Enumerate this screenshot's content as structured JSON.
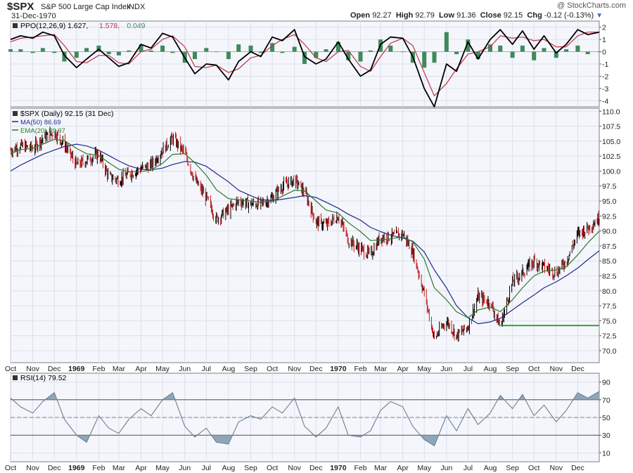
{
  "header": {
    "symbol": "$SPX",
    "name": "S&P 500 Large Cap Index",
    "exchange": "INDX",
    "date": "31-Dec-1970",
    "brand": "@ StockCharts.com",
    "open_label": "Open",
    "open": "92.27",
    "high_label": "High",
    "high": "92.79",
    "low_label": "Low",
    "low": "91.36",
    "close_label": "Close",
    "close": "92.15",
    "chg_label": "Chg",
    "chg": "-0.12 (-0.13%)"
  },
  "colors": {
    "background": "#f4f6fb",
    "grid": "#d6dbe6",
    "ma50": "#1f2a8a",
    "ema20": "#2c7a2c",
    "up_bar": "#000000",
    "down_bar": "#c41e1e",
    "ppo_line": "#000000",
    "ppo_signal": "#c0324a",
    "ppo_hist": "#3e8a5c",
    "rsi_fill": "#8fa6b8",
    "support_line": "#2e9a2e"
  },
  "chart_data": [
    {
      "type": "line",
      "panel": "PPO",
      "legend": [
        "PPO(12,26,9)",
        "1.627",
        "1.578",
        "0.049"
      ],
      "ylim": [
        -4.5,
        2.5
      ],
      "yticks": [
        2,
        1,
        0,
        -1,
        -2,
        -3,
        -4
      ],
      "x": [
        "1968-10-01",
        "1968-10-15",
        "1968-11-01",
        "1968-11-15",
        "1968-12-01",
        "1968-12-15",
        "1969-01-01",
        "1969-01-15",
        "1969-02-01",
        "1969-02-15",
        "1969-03-01",
        "1969-03-15",
        "1969-04-01",
        "1969-04-15",
        "1969-05-01",
        "1969-05-15",
        "1969-06-01",
        "1969-06-15",
        "1969-07-01",
        "1969-07-15",
        "1969-08-01",
        "1969-08-15",
        "1969-09-01",
        "1969-09-15",
        "1969-10-01",
        "1969-10-15",
        "1969-11-01",
        "1969-11-15",
        "1969-12-01",
        "1969-12-15",
        "1970-01-01",
        "1970-01-15",
        "1970-02-01",
        "1970-02-15",
        "1970-03-01",
        "1970-03-15",
        "1970-04-01",
        "1970-04-15",
        "1970-05-01",
        "1970-05-15",
        "1970-06-01",
        "1970-06-15",
        "1970-07-01",
        "1970-07-15",
        "1970-08-01",
        "1970-08-15",
        "1970-09-01",
        "1970-09-15",
        "1970-10-01",
        "1970-10-15",
        "1970-11-01",
        "1970-11-15",
        "1970-12-01",
        "1970-12-15",
        "1970-12-31"
      ],
      "series": [
        {
          "name": "PPO",
          "values": [
            1.0,
            1.3,
            1.1,
            1.6,
            1.3,
            -0.3,
            -1.3,
            -0.6,
            0.2,
            -0.5,
            -1.2,
            -0.9,
            0.6,
            0.3,
            1.5,
            1.2,
            -0.5,
            -1.8,
            -1.0,
            -1.1,
            -2.3,
            -0.8,
            0.0,
            -0.4,
            1.2,
            0.9,
            1.8,
            -0.4,
            -1.0,
            -0.6,
            0.8,
            -0.6,
            -2.0,
            -1.5,
            0.6,
            1.2,
            1.1,
            -0.4,
            -3.0,
            -4.5,
            -1.0,
            -1.6,
            0.8,
            -0.6,
            1.0,
            1.8,
            0.6,
            1.7,
            0.2,
            1.3,
            -0.1,
            0.6,
            1.8,
            1.4,
            1.6
          ]
        },
        {
          "name": "Signal",
          "values": [
            0.8,
            1.1,
            1.2,
            1.3,
            1.4,
            0.5,
            -0.8,
            -0.9,
            -0.3,
            -0.3,
            -0.9,
            -1.0,
            0.0,
            0.2,
            1.0,
            1.3,
            0.4,
            -1.2,
            -1.3,
            -1.1,
            -1.7,
            -1.4,
            -0.5,
            -0.3,
            0.5,
            1.0,
            1.4,
            0.6,
            -0.5,
            -0.8,
            0.0,
            0.1,
            -1.2,
            -1.6,
            -0.4,
            0.7,
            1.1,
            0.5,
            -1.7,
            -3.6,
            -2.6,
            -1.4,
            -0.2,
            0.0,
            0.4,
            1.3,
            1.1,
            1.2,
            0.9,
            1.0,
            0.4,
            0.4,
            1.3,
            1.6,
            1.6
          ]
        }
      ]
    },
    {
      "type": "line",
      "panel": "Price",
      "legend": [
        "$SPX (Daily) 92.15 (31 Dec)",
        "MA(50) 86.69",
        "EMA(20) 89.97"
      ],
      "ylim": [
        68,
        110.5
      ],
      "yticks": [
        110.0,
        107.5,
        105.0,
        102.5,
        100.0,
        97.5,
        95.0,
        92.5,
        90.0,
        87.5,
        85.0,
        82.5,
        80.0,
        77.5,
        75.0,
        72.5,
        70.0
      ],
      "x": [
        "1968-10-01",
        "1968-10-15",
        "1968-11-01",
        "1968-11-15",
        "1968-12-01",
        "1968-12-15",
        "1969-01-01",
        "1969-01-15",
        "1969-02-01",
        "1969-02-15",
        "1969-03-01",
        "1969-03-15",
        "1969-04-01",
        "1969-04-15",
        "1969-05-01",
        "1969-05-15",
        "1969-06-01",
        "1969-06-15",
        "1969-07-01",
        "1969-07-15",
        "1969-08-01",
        "1969-08-15",
        "1969-09-01",
        "1969-09-15",
        "1969-10-01",
        "1969-10-15",
        "1969-11-01",
        "1969-11-15",
        "1969-12-01",
        "1969-12-15",
        "1970-01-01",
        "1970-01-15",
        "1970-02-01",
        "1970-02-15",
        "1970-03-01",
        "1970-03-15",
        "1970-04-01",
        "1970-04-15",
        "1970-05-01",
        "1970-05-15",
        "1970-06-01",
        "1970-06-15",
        "1970-07-01",
        "1970-07-15",
        "1970-08-01",
        "1970-08-15",
        "1970-09-01",
        "1970-09-15",
        "1970-10-01",
        "1970-10-15",
        "1970-11-01",
        "1970-11-15",
        "1970-12-01",
        "1970-12-15",
        "1970-12-31"
      ],
      "series": [
        {
          "name": "$SPX",
          "values": [
            103.5,
            104.2,
            103.8,
            105.5,
            106.5,
            104.5,
            101.0,
            101.8,
            102.9,
            99.0,
            98.5,
            99.5,
            100.4,
            101.0,
            103.5,
            105.5,
            103.0,
            98.5,
            95.5,
            92.0,
            93.5,
            95.0,
            94.5,
            94.5,
            95.5,
            97.5,
            98.5,
            96.5,
            91.5,
            91.0,
            92.5,
            88.5,
            87.0,
            86.0,
            89.0,
            89.0,
            89.5,
            86.5,
            79.5,
            72.0,
            75.0,
            72.5,
            74.0,
            79.0,
            78.0,
            74.0,
            81.5,
            83.0,
            85.0,
            84.0,
            83.0,
            85.0,
            89.5,
            90.5,
            92.15
          ]
        },
        {
          "name": "MA(50)",
          "values": [
            100.0,
            101.0,
            102.0,
            102.8,
            103.5,
            104.1,
            104.5,
            104.2,
            103.5,
            102.6,
            101.7,
            100.9,
            100.3,
            100.2,
            100.5,
            101.1,
            101.6,
            101.5,
            100.8,
            99.6,
            98.2,
            96.8,
            95.9,
            95.2,
            95.1,
            95.3,
            95.6,
            95.9,
            95.6,
            94.8,
            93.8,
            92.8,
            91.8,
            90.6,
            89.9,
            89.3,
            88.8,
            88.3,
            86.5,
            83.5,
            80.5,
            77.5,
            75.5,
            74.5,
            74.8,
            75.4,
            76.8,
            78.0,
            79.3,
            80.5,
            81.5,
            82.5,
            83.8,
            85.2,
            86.69
          ]
        },
        {
          "name": "EMA(20)",
          "values": [
            103.0,
            103.6,
            103.8,
            104.5,
            105.3,
            105.1,
            103.8,
            102.9,
            102.6,
            101.4,
            100.3,
            99.9,
            99.9,
            100.2,
            101.3,
            102.8,
            102.9,
            101.4,
            99.3,
            96.9,
            95.4,
            95.2,
            95.0,
            94.8,
            95.0,
            95.8,
            96.8,
            96.7,
            95.0,
            93.5,
            93.0,
            91.4,
            89.9,
            88.4,
            88.5,
            88.7,
            89.0,
            88.2,
            85.3,
            80.5,
            78.5,
            76.5,
            75.5,
            76.8,
            77.3,
            76.5,
            78.5,
            80.5,
            82.5,
            83.3,
            83.5,
            84.0,
            86.0,
            88.0,
            89.97
          ]
        }
      ],
      "annotations": [
        {
          "type": "support",
          "y": 74.2,
          "from": "1970-08-15",
          "to": "1970-12-31"
        }
      ]
    },
    {
      "type": "area",
      "panel": "RSI",
      "legend": [
        "RSI(14) 79.52"
      ],
      "ylim": [
        0,
        100
      ],
      "yticks": [
        90,
        70,
        50,
        30,
        10
      ],
      "reference_lines": [
        70,
        50,
        30
      ],
      "x": [
        "1968-10-01",
        "1968-10-15",
        "1968-11-01",
        "1968-11-15",
        "1968-12-01",
        "1968-12-15",
        "1969-01-01",
        "1969-01-15",
        "1969-02-01",
        "1969-02-15",
        "1969-03-01",
        "1969-03-15",
        "1969-04-01",
        "1969-04-15",
        "1969-05-01",
        "1969-05-15",
        "1969-06-01",
        "1969-06-15",
        "1969-07-01",
        "1969-07-15",
        "1969-08-01",
        "1969-08-15",
        "1969-09-01",
        "1969-09-15",
        "1969-10-01",
        "1969-10-15",
        "1969-11-01",
        "1969-11-15",
        "1969-12-01",
        "1969-12-15",
        "1970-01-01",
        "1970-01-15",
        "1970-02-01",
        "1970-02-15",
        "1970-03-01",
        "1970-03-15",
        "1970-04-01",
        "1970-04-15",
        "1970-05-01",
        "1970-05-15",
        "1970-06-01",
        "1970-06-15",
        "1970-07-01",
        "1970-07-15",
        "1970-08-01",
        "1970-08-15",
        "1970-09-01",
        "1970-09-15",
        "1970-10-01",
        "1970-10-15",
        "1970-11-01",
        "1970-11-15",
        "1970-12-01",
        "1970-12-15",
        "1970-12-31"
      ],
      "series": [
        {
          "name": "RSI(14)",
          "values": [
            72,
            62,
            55,
            68,
            78,
            48,
            30,
            22,
            52,
            38,
            32,
            48,
            60,
            52,
            70,
            78,
            40,
            28,
            38,
            22,
            20,
            45,
            52,
            48,
            62,
            55,
            72,
            40,
            28,
            38,
            62,
            30,
            28,
            35,
            58,
            68,
            62,
            40,
            25,
            18,
            52,
            35,
            60,
            42,
            55,
            75,
            60,
            76,
            52,
            64,
            45,
            58,
            78,
            72,
            79.52
          ]
        }
      ]
    }
  ],
  "x_axis_labels": [
    "Oct",
    "Nov",
    "Dec",
    "1969",
    "Feb",
    "Mar",
    "Apr",
    "May",
    "Jun",
    "Jul",
    "Aug",
    "Sep",
    "Oct",
    "Nov",
    "Dec",
    "1970",
    "Feb",
    "Mar",
    "Apr",
    "May",
    "Jun",
    "Jul",
    "Aug",
    "Sep",
    "Oct",
    "Nov",
    "Dec"
  ]
}
